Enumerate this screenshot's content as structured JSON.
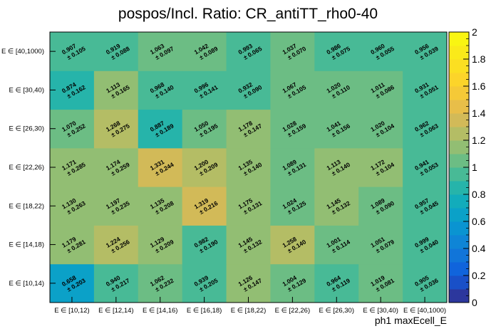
{
  "chart_data": {
    "type": "heatmap",
    "title": "pospos/Incl. Ratio: CR_antiTT_rho0-40",
    "xlabel": "ph1 maxEcell_E",
    "ylabel": "",
    "x_categories": [
      "E ∈ [10,12)",
      "E ∈ [12,14)",
      "E ∈ [14,16)",
      "E ∈ [16,18)",
      "E ∈ [18,22)",
      "E ∈ [22,26)",
      "E ∈ [26,30)",
      "E ∈ [30,40)",
      "E ∈ [40,1000)"
    ],
    "y_categories": [
      "E ∈ [10,14)",
      "E ∈ [14,18)",
      "E ∈ [18,22)",
      "E ∈ [22,26)",
      "E ∈ [26,30)",
      "E ∈ [30,40)",
      "E ∈ [40,1000)"
    ],
    "zlim": [
      0,
      2
    ],
    "colorbar_ticks": [
      "0",
      "0.2",
      "0.4",
      "0.6",
      "0.8",
      "1",
      "1.2",
      "1.4",
      "1.6",
      "1.8",
      "2"
    ],
    "values": [
      [
        0.658,
        0.94,
        1.062,
        0.939,
        1.126,
        1.004,
        0.964,
        1.019,
        0.905
      ],
      [
        1.179,
        1.224,
        1.129,
        0.982,
        1.145,
        1.258,
        1.001,
        1.051,
        0.999
      ],
      [
        1.13,
        1.197,
        1.135,
        1.319,
        1.175,
        1.024,
        1.145,
        1.089,
        0.957
      ],
      [
        1.171,
        1.174,
        1.331,
        1.2,
        1.135,
        1.089,
        1.113,
        1.172,
        0.941
      ],
      [
        1.07,
        1.268,
        0.887,
        1.05,
        1.178,
        1.028,
        1.041,
        1.02,
        0.962
      ],
      [
        0.874,
        1.113,
        0.968,
        0.996,
        0.932,
        1.067,
        1.02,
        1.011,
        0.931
      ],
      [
        0.907,
        0.919,
        1.063,
        1.042,
        0.993,
        1.037,
        0.986,
        0.96,
        0.956
      ]
    ],
    "errors": [
      [
        0.203,
        0.217,
        0.232,
        0.205,
        0.147,
        0.129,
        0.119,
        0.081,
        0.036
      ],
      [
        0.281,
        0.256,
        0.209,
        0.19,
        0.132,
        0.14,
        0.114,
        0.079,
        0.04
      ],
      [
        0.263,
        0.235,
        0.208,
        0.216,
        0.131,
        0.125,
        0.132,
        0.09,
        0.045
      ],
      [
        0.285,
        0.259,
        0.244,
        0.209,
        0.14,
        0.131,
        0.14,
        0.104,
        0.053
      ],
      [
        0.252,
        0.275,
        0.189,
        0.195,
        0.147,
        0.159,
        0.156,
        0.104,
        0.063
      ],
      [
        0.162,
        0.165,
        0.14,
        0.141,
        0.09,
        0.105,
        0.11,
        0.086,
        0.051
      ],
      [
        0.105,
        0.088,
        0.097,
        0.089,
        0.065,
        0.07,
        0.075,
        0.055,
        0.039
      ]
    ]
  }
}
